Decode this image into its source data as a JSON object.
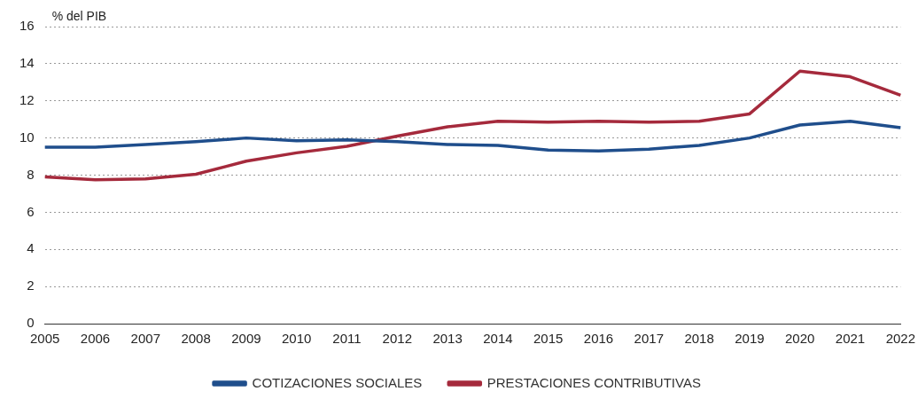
{
  "chart_data": {
    "type": "line",
    "ylabel": "% del PIB",
    "categories": [
      "2005",
      "2006",
      "2007",
      "2008",
      "2009",
      "2010",
      "2011",
      "2012",
      "2013",
      "2014",
      "2015",
      "2016",
      "2017",
      "2018",
      "2019",
      "2020",
      "2021",
      "2022"
    ],
    "series": [
      {
        "name": "COTIZACIONES SOCIALES",
        "color": "#1f4e8c",
        "values": [
          9.5,
          9.5,
          9.65,
          9.8,
          10.0,
          9.85,
          9.9,
          9.8,
          9.65,
          9.6,
          9.35,
          9.3,
          9.4,
          9.6,
          10.0,
          10.7,
          10.9,
          10.55
        ]
      },
      {
        "name": "PRESTACIONES CONTRIBUTIVAS",
        "color": "#a52a3c",
        "values": [
          7.9,
          7.75,
          7.8,
          8.05,
          8.75,
          9.2,
          9.55,
          10.1,
          10.6,
          10.9,
          10.85,
          10.9,
          10.85,
          10.9,
          11.3,
          13.6,
          13.3,
          12.3
        ]
      }
    ],
    "ylim": [
      0,
      16
    ],
    "yticks": [
      0,
      2,
      4,
      6,
      8,
      10,
      12,
      14,
      16
    ],
    "grid": "y",
    "legend": "bottom",
    "marker": "none",
    "line_style": "solid"
  }
}
